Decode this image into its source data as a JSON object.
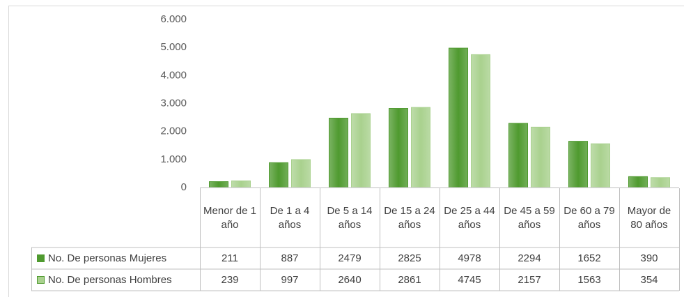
{
  "chart_data": {
    "type": "bar",
    "categories": [
      "Menor de 1 año",
      "De 1 a 4 años",
      "De 5 a 14 años",
      "De 15 a 24 años",
      "De 25 a 44 años",
      "De 45 a 59 años",
      "De 60 a 79 años",
      "Mayor de 80 años"
    ],
    "series": [
      {
        "name": "No. De personas Mujeres",
        "color": "#4f9a2f",
        "values": [
          211,
          887,
          2479,
          2825,
          4978,
          2294,
          1652,
          390
        ]
      },
      {
        "name": "No. De personas Hombres",
        "color": "#a9d18e",
        "values": [
          239,
          997,
          2640,
          2861,
          4745,
          2157,
          1563,
          354
        ]
      }
    ],
    "ylim": [
      0,
      6000
    ],
    "yticks": [
      0,
      {
        "value": 1000,
        "label": "1.000"
      },
      {
        "value": 2000,
        "label": "2.000"
      },
      {
        "value": 3000,
        "label": "3.000"
      },
      {
        "value": 4000,
        "label": "4.000"
      },
      {
        "value": 5000,
        "label": "5.000"
      },
      {
        "value": 6000,
        "label": "6.000"
      }
    ],
    "grid": false
  }
}
